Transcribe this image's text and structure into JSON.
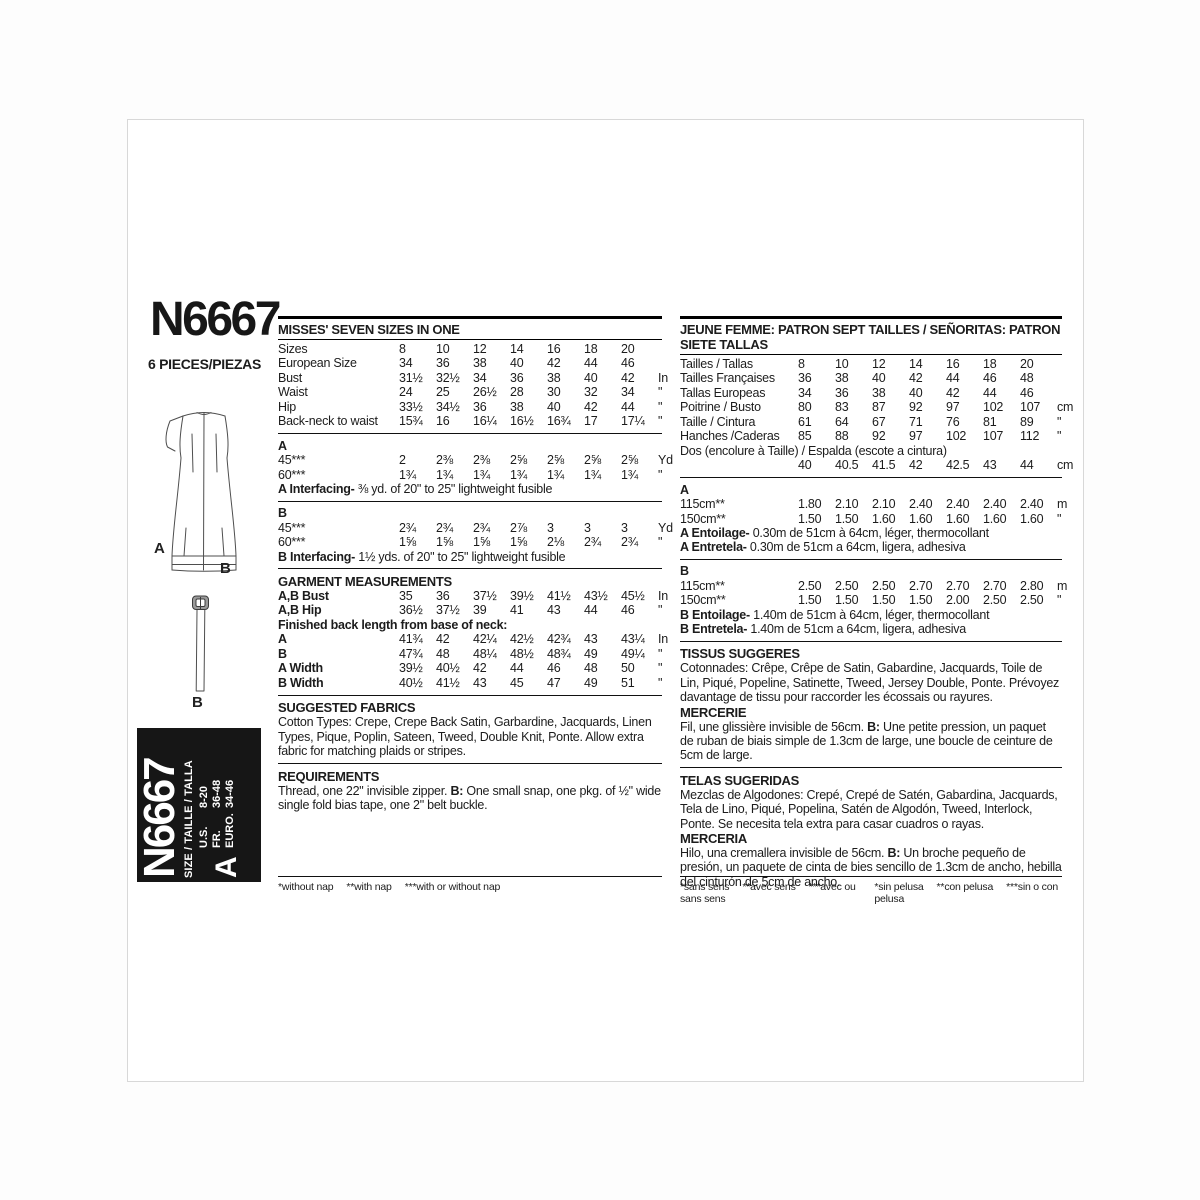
{
  "brand": {
    "number": "N6667",
    "pieces": "6 PIECES/PIEZAS"
  },
  "sketch": {
    "dress_label_a": "A",
    "dress_label_b": "B",
    "belt_label_b": "B"
  },
  "sidebar": {
    "number": "N6667",
    "size_label": "SIZE / TAILLE / TALLA",
    "rows": [
      {
        "label": "U.S.",
        "value": "8-20"
      },
      {
        "label": "FR.",
        "value": "36-48"
      },
      {
        "label": "EURO.",
        "value": "34-46"
      }
    ],
    "view": "A"
  },
  "left": {
    "header": "MISSES' SEVEN SIZES IN ONE",
    "size_rows": [
      {
        "l": "Sizes",
        "v": [
          "8",
          "10",
          "12",
          "14",
          "16",
          "18",
          "20"
        ],
        "u": ""
      },
      {
        "l": "European Size",
        "v": [
          "34",
          "36",
          "38",
          "40",
          "42",
          "44",
          "46"
        ],
        "u": ""
      },
      {
        "l": "Bust",
        "v": [
          "31½",
          "32½",
          "34",
          "36",
          "38",
          "40",
          "42"
        ],
        "u": "In"
      },
      {
        "l": "Waist",
        "v": [
          "24",
          "25",
          "26½",
          "28",
          "30",
          "32",
          "34"
        ],
        "u": "\""
      },
      {
        "l": "Hip",
        "v": [
          "33½",
          "34½",
          "36",
          "38",
          "40",
          "42",
          "44"
        ],
        "u": "\""
      },
      {
        "l": "Back-neck to waist",
        "v": [
          "15¾",
          "16",
          "16¼",
          "16½",
          "16¾",
          "17",
          "17¼"
        ],
        "u": "\""
      }
    ],
    "view_a": {
      "rows": [
        {
          "full": "A",
          "b": 1
        },
        {
          "l": "45***",
          "v": [
            "2",
            "2⅜",
            "2⅜",
            "2⅝",
            "2⅝",
            "2⅝",
            "2⅝"
          ],
          "u": "Yd"
        },
        {
          "l": "60***",
          "v": [
            "1¾",
            "1¾",
            "1¾",
            "1¾",
            "1¾",
            "1¾",
            "1¾"
          ],
          "u": "\""
        }
      ],
      "note": [
        {
          "b": "A Interfacing-"
        },
        {
          "t": " ⅜ yd. of 20\" to 25\" lightweight fusible"
        }
      ]
    },
    "view_b": {
      "rows": [
        {
          "full": "B",
          "b": 1
        },
        {
          "l": "45***",
          "v": [
            "2¾",
            "2¾",
            "2¾",
            "2⅞",
            "3",
            "3",
            "3"
          ],
          "u": "Yd"
        },
        {
          "l": "60***",
          "v": [
            "1⅝",
            "1⅝",
            "1⅝",
            "1⅝",
            "2⅛",
            "2¾",
            "2¾"
          ],
          "u": "\""
        }
      ],
      "note": [
        {
          "b": "B Interfacing-"
        },
        {
          "t": " 1½ yds. of 20\" to 25\" lightweight fusible"
        }
      ]
    },
    "garment": {
      "header": "GARMENT MEASUREMENTS",
      "rows": [
        {
          "l": "A,B Bust",
          "b": 1,
          "v": [
            "35",
            "36",
            "37½",
            "39½",
            "41½",
            "43½",
            "45½"
          ],
          "u": "In"
        },
        {
          "l": "A,B Hip",
          "b": 1,
          "v": [
            "36½",
            "37½",
            "39",
            "41",
            "43",
            "44",
            "46"
          ],
          "u": "\""
        },
        {
          "full": "Finished back length from base of neck:",
          "b": 1
        },
        {
          "l": "A",
          "b": 1,
          "v": [
            "41¾",
            "42",
            "42¼",
            "42½",
            "42¾",
            "43",
            "43¼"
          ],
          "u": "In"
        },
        {
          "l": "B",
          "b": 1,
          "v": [
            "47¾",
            "48",
            "48¼",
            "48½",
            "48¾",
            "49",
            "49¼"
          ],
          "u": "\""
        },
        {
          "l": "A Width",
          "b": 1,
          "v": [
            "39½",
            "40½",
            "42",
            "44",
            "46",
            "48",
            "50"
          ],
          "u": "\""
        },
        {
          "l": "B Width",
          "b": 1,
          "v": [
            "40½",
            "41½",
            "43",
            "45",
            "47",
            "49",
            "51"
          ],
          "u": "\""
        }
      ]
    },
    "fabrics": {
      "header": "SUGGESTED FABRICS",
      "text": "Cotton Types: Crepe, Crepe Back Satin, Garbardine, Jacquards, Linen Types, Pique, Poplin, Sateen, Tweed, Double Knit, Ponte. Allow extra fabric for matching plaids or stripes."
    },
    "requirements": {
      "header": "REQUIREMENTS",
      "segs": [
        {
          "t": "Thread, one 22\" invisible zipper. "
        },
        {
          "b": "B:"
        },
        {
          "t": " One small snap, one pkg. of ½\" wide single fold bias tape, one 2\" belt buckle."
        }
      ]
    },
    "footnotes": [
      "*without nap",
      "**with nap",
      "***with or without nap"
    ]
  },
  "right": {
    "header": "JEUNE FEMME: PATRON SEPT TAILLES / SEÑORITAS: PATRON SIETE TALLAS",
    "size_rows": [
      {
        "l": "Tailles / Tallas",
        "v": [
          "8",
          "10",
          "12",
          "14",
          "16",
          "18",
          "20"
        ],
        "u": ""
      },
      {
        "l": "Tailles Françaises",
        "v": [
          "36",
          "38",
          "40",
          "42",
          "44",
          "46",
          "48"
        ],
        "u": ""
      },
      {
        "l": "Tallas Europeas",
        "v": [
          "34",
          "36",
          "38",
          "40",
          "42",
          "44",
          "46"
        ],
        "u": ""
      },
      {
        "l": "Poitrine / Busto",
        "v": [
          "80",
          "83",
          "87",
          "92",
          "97",
          "102",
          "107"
        ],
        "u": "cm"
      },
      {
        "l": "Taille / Cintura",
        "v": [
          "61",
          "64",
          "67",
          "71",
          "76",
          "81",
          "89"
        ],
        "u": "\""
      },
      {
        "l": "Hanches /Caderas",
        "v": [
          "85",
          "88",
          "92",
          "97",
          "102",
          "107",
          "112"
        ],
        "u": "\""
      },
      {
        "full": "Dos (encolure à Taille) / Espalda (escote a cintura)"
      },
      {
        "l": "",
        "v": [
          "40",
          "40.5",
          "41.5",
          "42",
          "42.5",
          "43",
          "44"
        ],
        "u": "cm"
      }
    ],
    "view_a": {
      "rows": [
        {
          "full": "A",
          "b": 1
        },
        {
          "l": "115cm**",
          "v": [
            "1.80",
            "2.10",
            "2.10",
            "2.40",
            "2.40",
            "2.40",
            "2.40"
          ],
          "u": "m"
        },
        {
          "l": "150cm**",
          "v": [
            "1.50",
            "1.50",
            "1.60",
            "1.60",
            "1.60",
            "1.60",
            "1.60"
          ],
          "u": "\""
        }
      ],
      "note1": [
        {
          "b": "A Entoilage-"
        },
        {
          "t": " 0.30m de 51cm à 64cm, léger, thermocollant"
        }
      ],
      "note2": [
        {
          "b": "A Entretela-"
        },
        {
          "t": " 0.30m de 51cm a 64cm, ligera, adhesiva"
        }
      ]
    },
    "view_b": {
      "rows": [
        {
          "full": "B",
          "b": 1
        },
        {
          "l": "115cm**",
          "v": [
            "2.50",
            "2.50",
            "2.50",
            "2.70",
            "2.70",
            "2.70",
            "2.80"
          ],
          "u": "m"
        },
        {
          "l": "150cm**",
          "v": [
            "1.50",
            "1.50",
            "1.50",
            "1.50",
            "2.00",
            "2.50",
            "2.50"
          ],
          "u": "\""
        }
      ],
      "note1": [
        {
          "b": "B Entoilage-"
        },
        {
          "t": " 1.40m de 51cm à 64cm, léger, thermocollant"
        }
      ],
      "note2": [
        {
          "b": "B Entretela-"
        },
        {
          "t": " 1.40m de 51cm a 64cm, ligera, adhesiva"
        }
      ]
    },
    "tissus": {
      "header": "TISSUS SUGGERES",
      "text": "Cotonnades: Crêpe, Crêpe de Satin, Gabardine, Jacquards, Toile de Lin, Piqué, Popeline, Satinette, Tweed, Jersey Double, Ponte. Prévoyez davantage de tissu pour raccorder les écossais ou rayures."
    },
    "mercerie": {
      "header": "MERCERIE",
      "segs": [
        {
          "t": "Fil, une glissière invisible de 56cm. "
        },
        {
          "b": "B:"
        },
        {
          "t": " Une petite pression, un paquet de ruban de biais simple de 1.3cm de large, une boucle de ceinture de 5cm de large."
        }
      ]
    },
    "telas": {
      "header": "TELAS SUGERIDAS",
      "text": "Mezclas de Algodones: Crepé, Crepé de Satén, Gabardina, Jacquards, Tela de Lino, Piqué, Popelina, Satén de Algodón, Tweed, Interlock, Ponte. Se necesita tela extra para casar cuadros o rayas."
    },
    "merceria": {
      "header": "MERCERIA",
      "segs": [
        {
          "t": "Hilo, una cremallera invisible de 56cm. "
        },
        {
          "b": "B:"
        },
        {
          "t": " Un broche pequeño de presión, un paquete de cinta de bies sencillo de 1.3cm de ancho, hebilla del cinturón de 5cm de ancho."
        }
      ]
    },
    "footnotes_fr": [
      "*sans sens",
      "**avec sens",
      "***avec ou sans sens"
    ],
    "footnotes_es": [
      "*sin pelusa",
      "**con pelusa",
      "***sin o con pelusa"
    ]
  },
  "colors": {
    "ink": "#1c1c1c",
    "sidebar_bg": "#161616",
    "sheet_border": "#d8d8d8"
  }
}
